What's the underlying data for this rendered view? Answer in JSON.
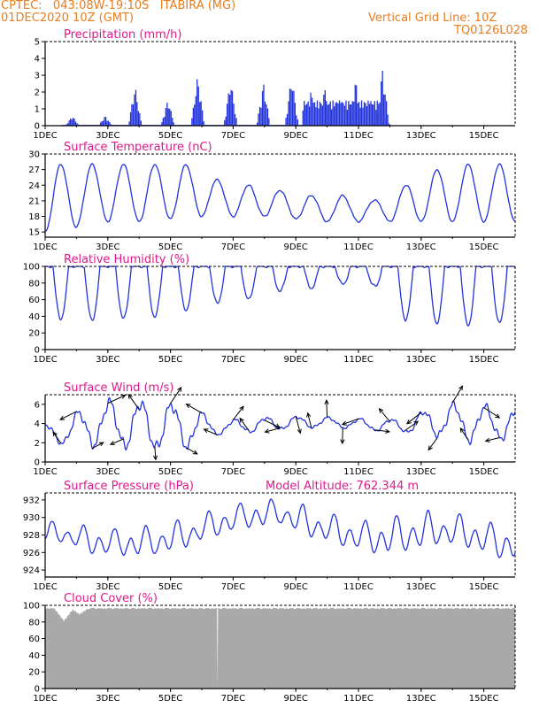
{
  "header": {
    "station": "CPTEC:   043:08W-19:10S   ITABIRA (MG)",
    "run": "01DEC2020 10Z (GMT)",
    "grid_note": "Vertical Grid Line: 10Z",
    "code": "TQ0126L028"
  },
  "colors": {
    "header": "#e87d1e",
    "panel_title": "#e0198a",
    "line": "#2233dd",
    "cloud": "#a9a9a9"
  },
  "x_labels": [
    "1DEC",
    "3DEC",
    "5DEC",
    "7DEC",
    "9DEC",
    "11DEC",
    "13DEC",
    "15DEC"
  ],
  "chart_data": [
    {
      "id": "precip",
      "type": "bar",
      "title": "Precipitation (mm/h)",
      "x_unit": "days since 1DEC 00Z",
      "xlim": [
        0,
        15
      ],
      "ylim": [
        0,
        5
      ],
      "yticks": [
        "0",
        "1",
        "2",
        "3",
        "4",
        "5"
      ],
      "events": [
        {
          "day": 0.85,
          "peak": 0.6
        },
        {
          "day": 1.9,
          "peak": 0.6
        },
        {
          "day": 2.85,
          "peak": 2.4
        },
        {
          "day": 3.9,
          "peak": 1.6
        },
        {
          "day": 4.85,
          "peak": 3.0
        },
        {
          "day": 5.9,
          "peak": 2.8
        },
        {
          "day": 6.95,
          "peak": 2.6
        },
        {
          "day": 7.85,
          "peak": 3.0
        },
        {
          "day": 8.45,
          "peak": 2.2
        },
        {
          "day": 8.9,
          "peak": 2.3
        },
        {
          "day": 9.4,
          "peak": 1.9
        },
        {
          "day": 9.9,
          "peak": 2.8
        },
        {
          "day": 10.35,
          "peak": 1.5
        },
        {
          "day": 10.75,
          "peak": 3.4
        }
      ]
    },
    {
      "id": "temp",
      "type": "line",
      "title": "Surface Temperature (nC)",
      "xlim": [
        0,
        15
      ],
      "ylim": [
        14,
        30
      ],
      "yticks": [
        "15",
        "18",
        "21",
        "24",
        "27",
        "30"
      ],
      "series": [
        {
          "max": [
            28,
            28,
            28,
            28,
            28,
            25,
            24,
            23,
            22,
            22,
            21,
            24,
            27,
            28,
            28
          ],
          "min": [
            15,
            17,
            17,
            17,
            18,
            18,
            18,
            18,
            17,
            17,
            17,
            17,
            17,
            17,
            17
          ]
        }
      ]
    },
    {
      "id": "rh",
      "type": "line",
      "title": "Relative Humidity (%)",
      "xlim": [
        0,
        15
      ],
      "ylim": [
        0,
        100
      ],
      "yticks": [
        "0",
        "20",
        "40",
        "60",
        "80",
        "100"
      ],
      "series": [
        {
          "min": [
            40,
            38,
            40,
            42,
            50,
            58,
            62,
            72,
            75,
            80,
            78,
            38,
            35,
            32,
            35
          ]
        }
      ]
    },
    {
      "id": "wind",
      "type": "line",
      "title": "Surface Wind (m/s)",
      "xlim": [
        0,
        15
      ],
      "ylim": [
        0,
        7
      ],
      "yticks": [
        "0",
        "2",
        "4",
        "6"
      ],
      "speed_max": [
        4,
        6.5,
        6.6,
        6.5,
        6.2,
        4.3,
        4.6,
        4.8,
        4.8,
        4.6,
        4.5,
        4.5,
        6.2,
        6.2,
        5.8
      ],
      "speed_min": [
        1.8,
        1.5,
        1.3,
        1.0,
        1.2,
        2.8,
        3.0,
        3.3,
        3.5,
        3.5,
        3.2,
        3.0,
        2.5,
        2.0,
        2.2
      ]
    },
    {
      "id": "pressure",
      "type": "line",
      "title": "Surface Pressure (hPa)",
      "subtitle": "Model Altitude: 762.344 m",
      "xlim": [
        0,
        15
      ],
      "ylim": [
        923.2,
        932.8
      ],
      "yticks": [
        "924",
        "926",
        "928",
        "930",
        "932"
      ],
      "series": [
        {
          "mean": [
            928.2,
            927.2,
            927.0,
            927.2,
            928.0,
            929.3,
            930.2,
            930.5,
            929.2,
            928.2,
            927.5,
            928.0,
            928.6,
            928.2,
            927.0
          ],
          "amp": [
            1.2,
            1.6,
            1.6,
            1.8,
            1.7,
            1.6,
            1.6,
            1.5,
            1.8,
            1.7,
            1.9,
            2.3,
            2.0,
            1.9,
            2.0
          ]
        }
      ]
    },
    {
      "id": "cloud",
      "type": "area",
      "title": "Cloud Cover (%)",
      "xlim": [
        0,
        15
      ],
      "ylim": [
        0,
        100
      ],
      "yticks": [
        "0",
        "20",
        "40",
        "60",
        "80",
        "100"
      ],
      "series": [
        {
          "typical": 97,
          "dips": [
            {
              "day": 0.6,
              "value": 80
            },
            {
              "day": 1.1,
              "value": 88
            },
            {
              "day": 5.5,
              "value": 0
            }
          ]
        }
      ]
    }
  ]
}
